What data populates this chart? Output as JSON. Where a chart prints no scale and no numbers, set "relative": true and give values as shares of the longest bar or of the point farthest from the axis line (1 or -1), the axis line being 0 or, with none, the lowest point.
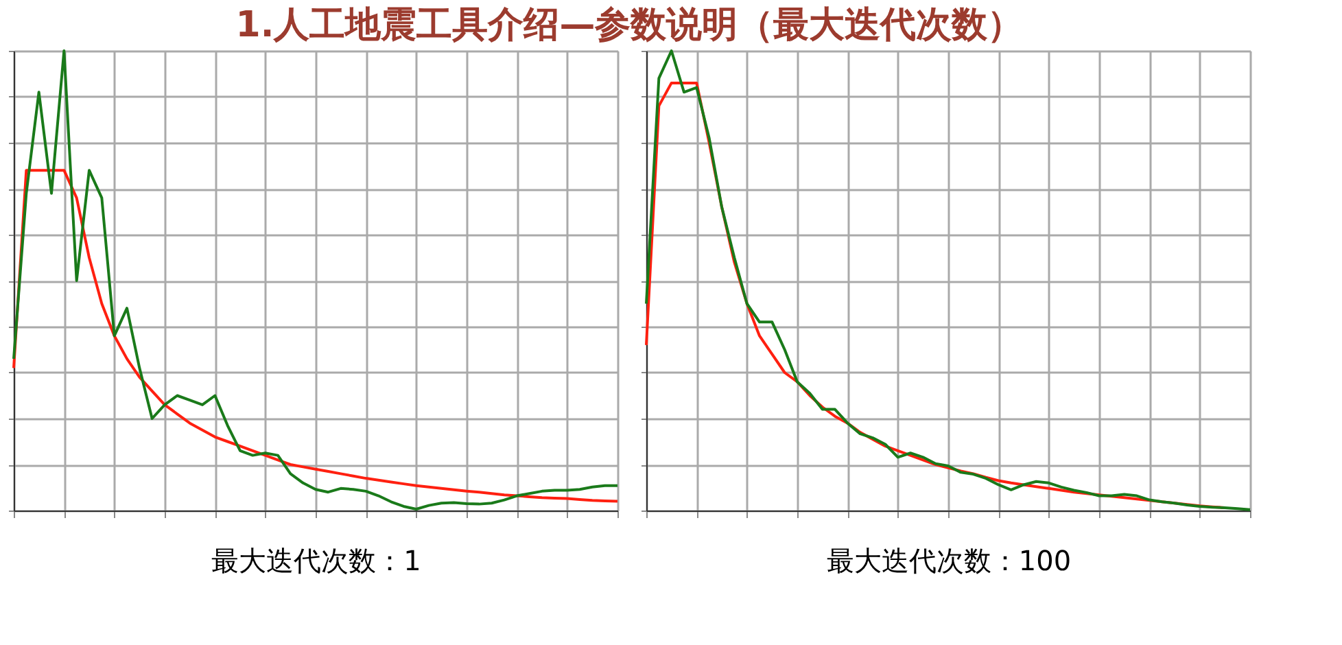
{
  "chart_data": [
    {
      "type": "line",
      "title": "1.人工地震工具介绍—参数说明（最大迭代次数）",
      "xlabel": "最大迭代次数：1",
      "relative": true,
      "grid": true,
      "legend": false,
      "categories": [
        null,
        null,
        null,
        null,
        null,
        null,
        null,
        null,
        null,
        null,
        null,
        null,
        null,
        null,
        null,
        null,
        null,
        null,
        null,
        null,
        null,
        null,
        null,
        null,
        null,
        null,
        null,
        null,
        null,
        null,
        null,
        null,
        null,
        null,
        null,
        null,
        null,
        null,
        null,
        null,
        null,
        null,
        null,
        null,
        null,
        null,
        null,
        null,
        null
      ],
      "series": [
        {
          "color": "#ff2010",
          "values": [
            0.31,
            0.74,
            0.74,
            0.74,
            0.74,
            0.68,
            0.55,
            0.45,
            0.38,
            0.33,
            0.29,
            0.26,
            0.23,
            0.21,
            0.19,
            0.175,
            0.16,
            0.15,
            0.14,
            0.13,
            0.12,
            0.11,
            0.1,
            0.095,
            0.09,
            0.085,
            0.08,
            0.075,
            0.07,
            0.066,
            0.062,
            0.058,
            0.054,
            0.051,
            0.048,
            0.045,
            0.042,
            0.04,
            0.037,
            0.034,
            0.032,
            0.03,
            0.028,
            0.027,
            0.026,
            0.024,
            0.022,
            0.021,
            0.02
          ]
        },
        {
          "color": "#1a7a1a",
          "values": [
            0.33,
            0.69,
            0.91,
            0.69,
            1.0,
            0.5,
            0.74,
            0.68,
            0.38,
            0.44,
            0.31,
            0.2,
            0.23,
            0.25,
            0.24,
            0.23,
            0.25,
            0.185,
            0.13,
            0.12,
            0.125,
            0.12,
            0.08,
            0.06,
            0.046,
            0.04,
            0.048,
            0.046,
            0.042,
            0.032,
            0.019,
            0.009,
            0.003,
            0.011,
            0.016,
            0.017,
            0.015,
            0.014,
            0.016,
            0.023,
            0.032,
            0.037,
            0.042,
            0.044,
            0.044,
            0.046,
            0.051,
            0.054,
            0.054
          ]
        }
      ]
    },
    {
      "type": "line",
      "xlabel": "最大迭代次数：100",
      "relative": true,
      "grid": true,
      "legend": false,
      "categories": [
        null,
        null,
        null,
        null,
        null,
        null,
        null,
        null,
        null,
        null,
        null,
        null,
        null,
        null,
        null,
        null,
        null,
        null,
        null,
        null,
        null,
        null,
        null,
        null,
        null,
        null,
        null,
        null,
        null,
        null,
        null,
        null,
        null,
        null,
        null,
        null,
        null,
        null,
        null,
        null,
        null,
        null,
        null,
        null,
        null,
        null,
        null,
        null,
        null
      ],
      "series": [
        {
          "color": "#ff2010",
          "values": [
            0.36,
            0.88,
            0.93,
            0.93,
            0.93,
            0.8,
            0.66,
            0.54,
            0.45,
            0.38,
            0.34,
            0.3,
            0.28,
            0.25,
            0.225,
            0.205,
            0.19,
            0.17,
            0.155,
            0.14,
            0.13,
            0.12,
            0.11,
            0.1,
            0.093,
            0.086,
            0.08,
            0.072,
            0.065,
            0.06,
            0.056,
            0.052,
            0.048,
            0.044,
            0.04,
            0.037,
            0.034,
            0.031,
            0.028,
            0.025,
            0.022,
            0.019,
            0.016,
            0.013,
            0.01,
            0.008,
            0.006,
            null,
            null
          ]
        },
        {
          "color": "#1a7a1a",
          "values": [
            0.45,
            0.94,
            1.0,
            0.91,
            0.92,
            0.81,
            0.66,
            0.55,
            0.45,
            0.41,
            0.41,
            0.35,
            0.28,
            0.255,
            0.22,
            0.22,
            0.19,
            0.167,
            0.158,
            0.144,
            0.116,
            0.125,
            0.116,
            0.102,
            0.097,
            0.083,
            0.079,
            0.07,
            0.056,
            0.045,
            0.056,
            0.063,
            0.06,
            0.051,
            0.044,
            0.039,
            0.032,
            0.032,
            0.035,
            0.032,
            0.023,
            0.019,
            0.016,
            0.012,
            0.009,
            0.007,
            0.006,
            0.004,
            0.002
          ]
        }
      ]
    }
  ]
}
